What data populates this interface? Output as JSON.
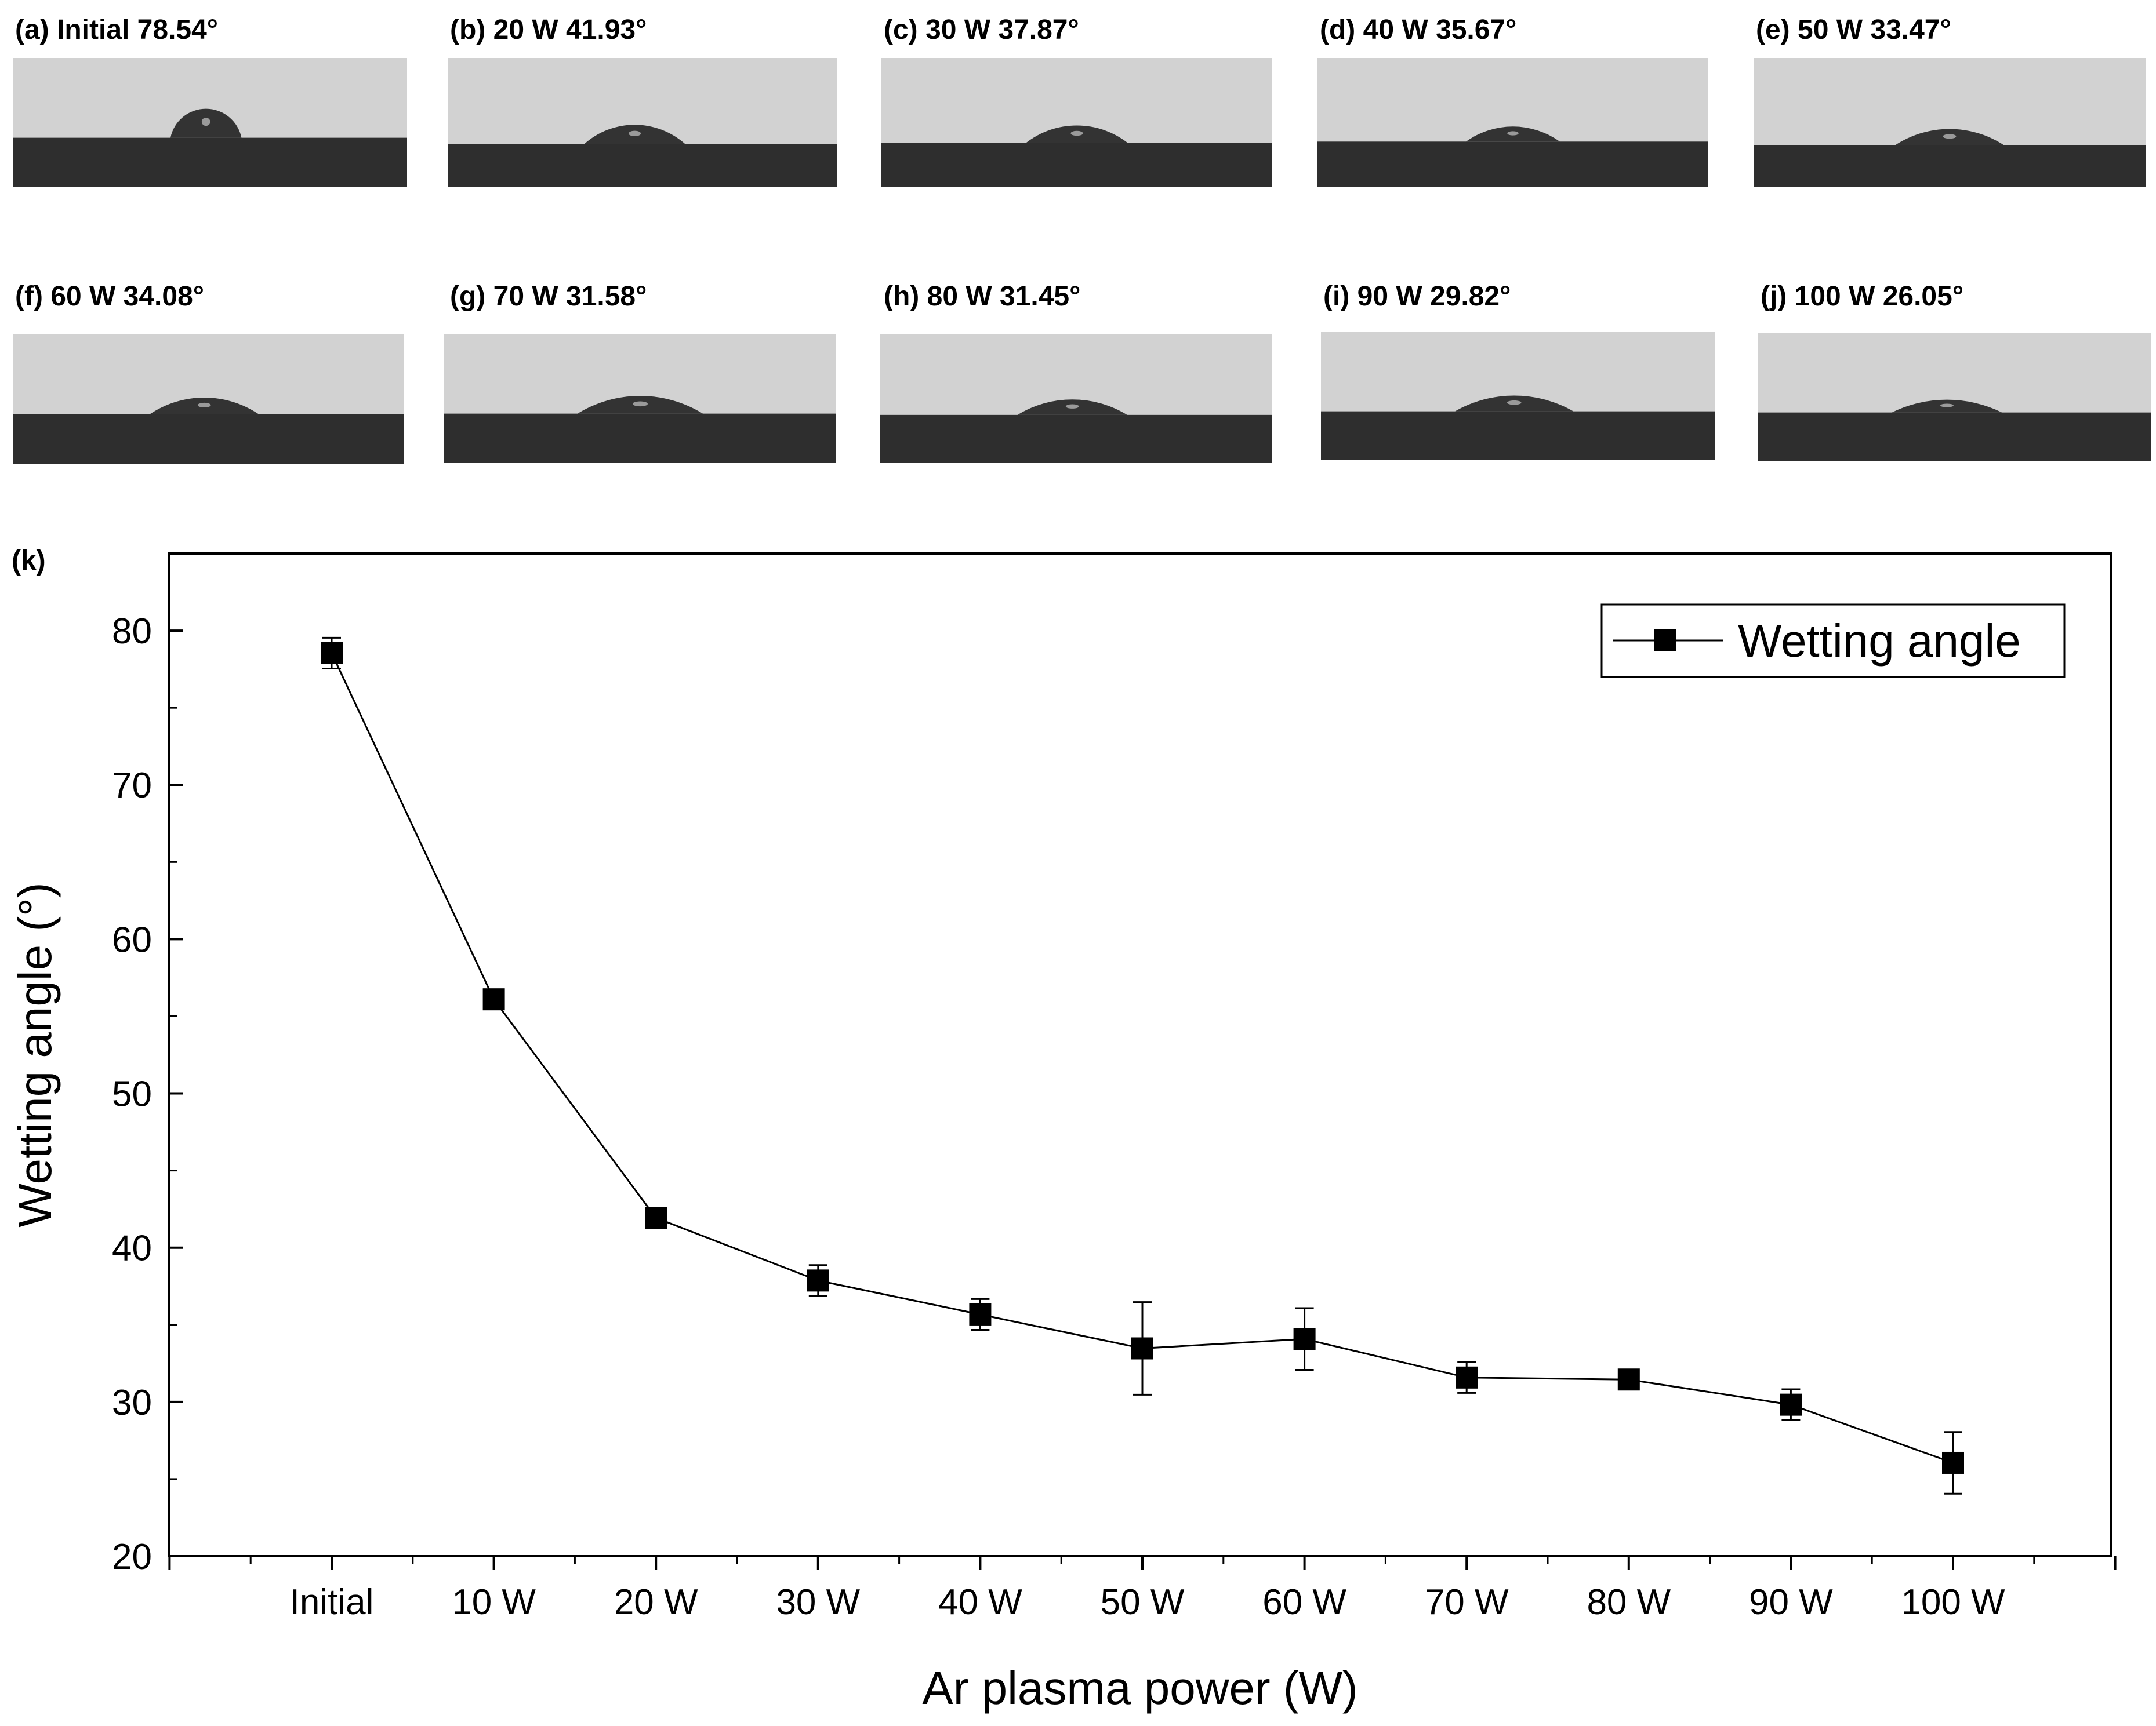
{
  "photos": [
    {
      "id": "a",
      "label": "(a) Initial 78.54°",
      "angle": 78.54
    },
    {
      "id": "b",
      "label": "(b) 20 W 41.93°",
      "angle": 41.93
    },
    {
      "id": "c",
      "label": "(c) 30 W 37.87°",
      "angle": 37.87
    },
    {
      "id": "d",
      "label": "(d) 40 W 35.67°",
      "angle": 35.67
    },
    {
      "id": "e",
      "label": "(e) 50 W 33.47°",
      "angle": 33.47
    },
    {
      "id": "f",
      "label": "(f) 60 W 34.08°",
      "angle": 34.08
    },
    {
      "id": "g",
      "label": "(g) 70 W 31.58°",
      "angle": 31.58
    },
    {
      "id": "h",
      "label": "(h) 80 W 31.45°",
      "angle": 31.45
    },
    {
      "id": "i",
      "label": "(i) 90 W 29.82°",
      "angle": 29.82
    },
    {
      "id": "j",
      "label": "(j) 100 W 26.05°",
      "angle": 26.05
    }
  ],
  "colors": {
    "photo_background": "#d2d2d2",
    "substrate": "#2e2e2e",
    "droplet": "#333333",
    "line": "#000000"
  },
  "chart_data": {
    "type": "line",
    "panel_label": "(k)",
    "categories": [
      "Initial",
      "10 W",
      "20 W",
      "30 W",
      "40 W",
      "50 W",
      "60 W",
      "70 W",
      "80 W",
      "90 W",
      "100 W"
    ],
    "series": [
      {
        "name": "Wetting angle",
        "values": [
          78.54,
          56.1,
          41.93,
          37.87,
          35.67,
          33.47,
          34.08,
          31.58,
          31.45,
          29.82,
          26.05
        ],
        "errors": [
          1.0,
          0.5,
          0.5,
          1.0,
          1.0,
          3.0,
          2.0,
          1.0,
          0.5,
          1.0,
          2.0
        ]
      }
    ],
    "xlabel": "Ar plasma power (W)",
    "ylabel": "Wetting angle (°)",
    "ylim": [
      20,
      85
    ],
    "yticks": [
      20,
      30,
      40,
      50,
      60,
      70,
      80
    ],
    "legend": "top-right",
    "grid": false
  }
}
